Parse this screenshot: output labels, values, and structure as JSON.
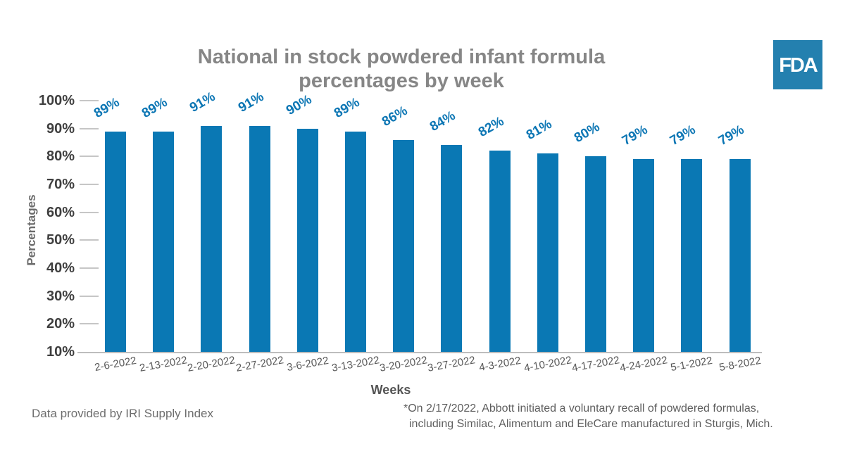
{
  "header": {
    "title_line1": "National in stock powdered infant formula",
    "title_line2": "percentages by week",
    "fda_logo_text": "FDA"
  },
  "chart_data": {
    "type": "bar",
    "title": "National in stock powdered infant formula percentages by week",
    "categories": [
      "2-6-2022",
      "2-13-2022",
      "2-20-2022",
      "2-27-2022",
      "3-6-2022",
      "3-13-2022",
      "3-20-2022",
      "3-27-2022",
      "4-3-2022",
      "4-10-2022",
      "4-17-2022",
      "4-24-2022",
      "5-1-2022",
      "5-8-2022"
    ],
    "values": [
      89,
      89,
      91,
      91,
      90,
      89,
      86,
      84,
      82,
      81,
      80,
      79,
      79,
      79
    ],
    "value_suffix": "%",
    "xlabel": "Weeks",
    "ylabel": "Percentages",
    "ylim": [
      10,
      100
    ],
    "ytick_labels": [
      "10%",
      "20%",
      "30%",
      "40%",
      "50%",
      "60%",
      "70%",
      "80%",
      "90%",
      "100%"
    ],
    "gridlines": "none (short tick marks on y-axis, baseline at 10%)",
    "legend": "none",
    "bar_color": "#0A78B4",
    "value_label_color": "#0C76B4"
  },
  "footer": {
    "source_note": "Data provided by IRI Supply Index",
    "footnote_line1": "*On 2/17/2022, Abbott initiated a voluntary recall of powdered formulas,",
    "footnote_line2": "including Similac, Alimentum and EleCare manufactured in Sturgis, Mich."
  }
}
